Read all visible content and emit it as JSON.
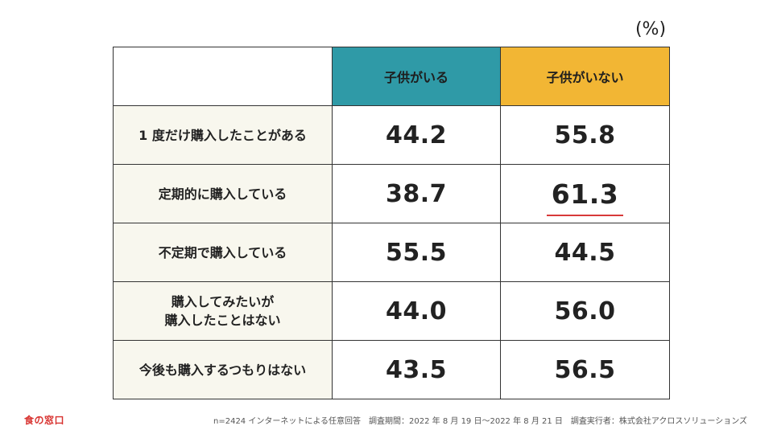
{
  "unit_label": "(%)",
  "chart_data": {
    "type": "table",
    "columns": [
      "子供がいる",
      "子供がいない"
    ],
    "rows": [
      {
        "label": "1 度だけ購入したことがある",
        "values": [
          "44.2",
          "55.8"
        ]
      },
      {
        "label": "定期的に購入している",
        "values": [
          "38.7",
          "61.3"
        ]
      },
      {
        "label": "不定期で購入している",
        "values": [
          "55.5",
          "44.5"
        ]
      },
      {
        "label": "購入してみたいが\n購入したことはない",
        "values": [
          "44.0",
          "56.0"
        ]
      },
      {
        "label": "今後も購入するつもりはない",
        "values": [
          "43.5",
          "56.5"
        ]
      }
    ],
    "highlight": {
      "row": 1,
      "column": 1,
      "value": "61.3"
    }
  },
  "colors": {
    "col_with_children": "#2f9aa7",
    "col_without_children": "#f2b634",
    "label_background": "#f8f7ee",
    "highlight_underline": "#d83a3a",
    "logo": "#d8322f"
  },
  "logo": "食の窓口",
  "footnote": "n=2424 インターネットによる任意回答　調査期間：2022 年 8 月 19 日〜2022 年 8 月 21 日　調査実行者：株式会社アクロスソリューションズ"
}
